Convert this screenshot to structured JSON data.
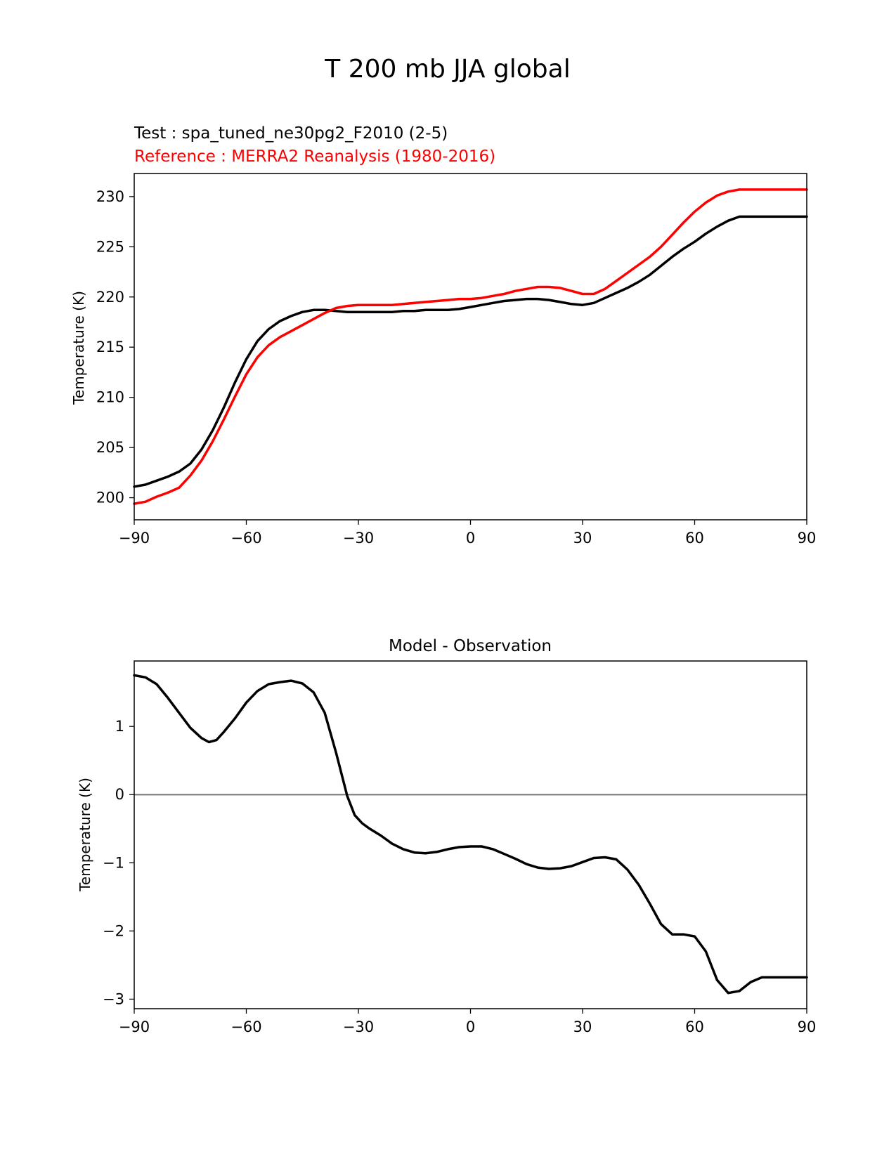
{
  "figure": {
    "suptitle": "T 200 mb JJA global"
  },
  "chart_data": [
    {
      "type": "line",
      "title_test": "Test : spa_tuned_ne30pg2_F2010 (2-5)",
      "title_reference": "Reference : MERRA2 Reanalysis (1980-2016)",
      "xlabel": "",
      "ylabel": "Temperature (K)",
      "xlim": [
        -90,
        90
      ],
      "ylim": [
        197.8,
        232.3
      ],
      "xticks": [
        -90,
        -60,
        -30,
        0,
        30,
        60,
        90
      ],
      "xtick_labels": [
        "−90",
        "−60",
        "−30",
        "0",
        "30",
        "60",
        "90"
      ],
      "yticks": [
        200,
        205,
        210,
        215,
        220,
        225,
        230
      ],
      "ytick_labels": [
        "200",
        "205",
        "210",
        "215",
        "220",
        "225",
        "230"
      ],
      "grid": false,
      "series": [
        {
          "role": "test",
          "color": "#000000",
          "x": [
            -90,
            -87,
            -84,
            -81,
            -78,
            -75,
            -72,
            -69,
            -66,
            -63,
            -60,
            -57,
            -54,
            -51,
            -48,
            -45,
            -42,
            -39,
            -36,
            -33,
            -30,
            -27,
            -24,
            -21,
            -18,
            -15,
            -12,
            -9,
            -6,
            -3,
            0,
            3,
            6,
            9,
            12,
            15,
            18,
            21,
            24,
            27,
            30,
            33,
            36,
            39,
            42,
            45,
            48,
            51,
            54,
            57,
            60,
            63,
            66,
            69,
            72,
            75,
            78,
            81,
            84,
            87,
            90
          ],
          "y": [
            201.1,
            201.3,
            201.7,
            202.1,
            202.6,
            203.4,
            204.8,
            206.7,
            209.0,
            211.5,
            213.8,
            215.6,
            216.8,
            217.6,
            218.1,
            218.5,
            218.7,
            218.7,
            218.6,
            218.5,
            218.5,
            218.5,
            218.5,
            218.5,
            218.6,
            218.6,
            218.7,
            218.7,
            218.7,
            218.8,
            219.0,
            219.2,
            219.4,
            219.6,
            219.7,
            219.8,
            219.8,
            219.7,
            219.5,
            219.3,
            219.2,
            219.4,
            219.9,
            220.4,
            220.9,
            221.5,
            222.2,
            223.1,
            224.0,
            224.8,
            225.5,
            226.3,
            227.0,
            227.6,
            228.0,
            228.0,
            228.0,
            228.0,
            228.0,
            228.0,
            228.0
          ]
        },
        {
          "role": "reference",
          "color": "#ff0000",
          "x": [
            -90,
            -87,
            -84,
            -81,
            -78,
            -75,
            -72,
            -69,
            -66,
            -63,
            -60,
            -57,
            -54,
            -51,
            -48,
            -45,
            -42,
            -39,
            -36,
            -33,
            -30,
            -27,
            -24,
            -21,
            -18,
            -15,
            -12,
            -9,
            -6,
            -3,
            0,
            3,
            6,
            9,
            12,
            15,
            18,
            21,
            24,
            27,
            30,
            33,
            36,
            39,
            42,
            45,
            48,
            51,
            54,
            57,
            60,
            63,
            66,
            69,
            72,
            75,
            78,
            81,
            84,
            87,
            90
          ],
          "y": [
            199.4,
            199.6,
            200.1,
            200.5,
            201.0,
            202.2,
            203.7,
            205.6,
            207.8,
            210.1,
            212.3,
            214.0,
            215.2,
            216.0,
            216.6,
            217.2,
            217.8,
            218.4,
            218.9,
            219.1,
            219.2,
            219.2,
            219.2,
            219.2,
            219.3,
            219.4,
            219.5,
            219.6,
            219.7,
            219.8,
            219.8,
            219.9,
            220.1,
            220.3,
            220.6,
            220.8,
            221.0,
            221.0,
            220.9,
            220.6,
            220.3,
            220.3,
            220.8,
            221.6,
            222.4,
            223.2,
            224.0,
            225.0,
            226.2,
            227.4,
            228.5,
            229.4,
            230.1,
            230.5,
            230.7,
            230.7,
            230.7,
            230.7,
            230.7,
            230.7,
            230.7
          ]
        }
      ]
    },
    {
      "type": "line",
      "title": "Model - Observation",
      "xlabel": "",
      "ylabel": "Temperature (K)",
      "xlim": [
        -90,
        90
      ],
      "ylim": [
        -3.14,
        1.96
      ],
      "xticks": [
        -90,
        -60,
        -30,
        0,
        30,
        60,
        90
      ],
      "xtick_labels": [
        "−90",
        "−60",
        "−30",
        "0",
        "30",
        "60",
        "90"
      ],
      "yticks": [
        -3,
        -2,
        -1,
        0,
        1
      ],
      "ytick_labels": [
        "−3",
        "−2",
        "−1",
        "0",
        "1"
      ],
      "grid": false,
      "zero_line_color": "#808080",
      "series": [
        {
          "role": "difference",
          "color": "#000000",
          "x": [
            -90,
            -87,
            -84,
            -81,
            -78,
            -75,
            -72,
            -70,
            -68,
            -66,
            -63,
            -60,
            -57,
            -54,
            -51,
            -48,
            -45,
            -42,
            -39,
            -36,
            -33,
            -31,
            -29,
            -27,
            -24,
            -21,
            -18,
            -15,
            -12,
            -9,
            -6,
            -3,
            0,
            3,
            6,
            9,
            12,
            15,
            18,
            21,
            24,
            27,
            30,
            33,
            36,
            39,
            42,
            45,
            48,
            51,
            54,
            57,
            60,
            63,
            66,
            69,
            72,
            75,
            78,
            81,
            84,
            87,
            90
          ],
          "y": [
            1.75,
            1.72,
            1.62,
            1.42,
            1.2,
            0.98,
            0.83,
            0.77,
            0.8,
            0.92,
            1.12,
            1.35,
            1.52,
            1.62,
            1.65,
            1.67,
            1.63,
            1.5,
            1.2,
            0.62,
            -0.02,
            -0.3,
            -0.42,
            -0.5,
            -0.6,
            -0.72,
            -0.8,
            -0.85,
            -0.86,
            -0.84,
            -0.8,
            -0.77,
            -0.76,
            -0.76,
            -0.8,
            -0.87,
            -0.94,
            -1.02,
            -1.07,
            -1.09,
            -1.08,
            -1.05,
            -0.99,
            -0.93,
            -0.92,
            -0.95,
            -1.1,
            -1.32,
            -1.6,
            -1.9,
            -2.05,
            -2.05,
            -2.08,
            -2.3,
            -2.72,
            -2.91,
            -2.88,
            -2.75,
            -2.68,
            -2.68,
            -2.68,
            -2.68,
            -2.68
          ]
        }
      ]
    }
  ]
}
